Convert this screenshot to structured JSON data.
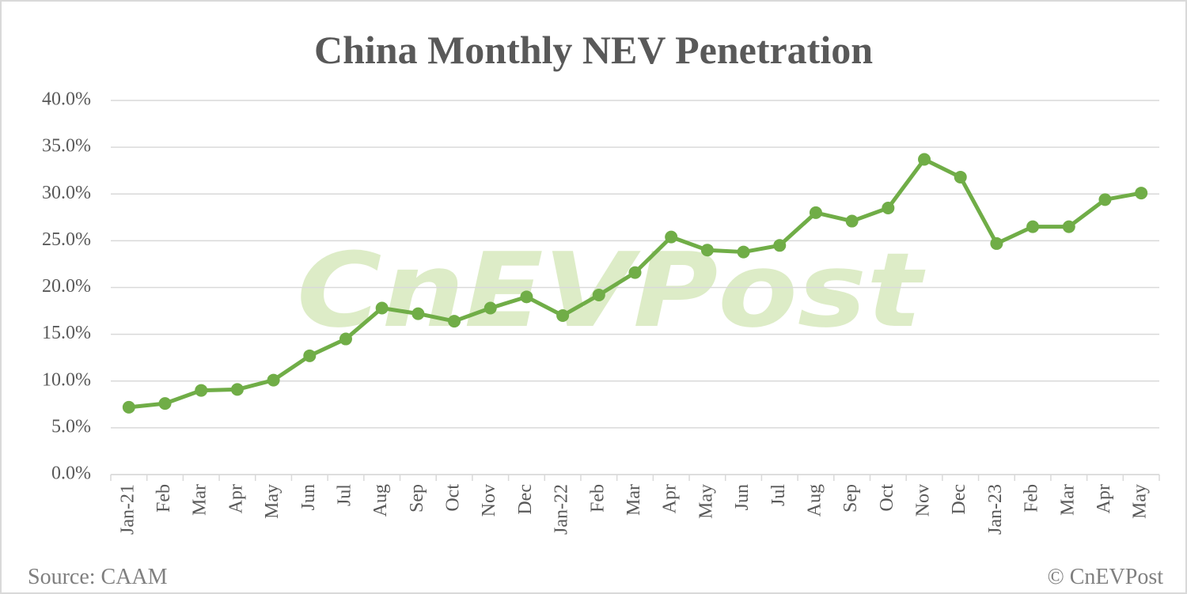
{
  "chart_data": {
    "type": "line",
    "title": "China Monthly NEV Penetration",
    "watermark": "CnEVPost",
    "source": "Source:  CAAM",
    "copyright": "© CnEVPost",
    "categories": [
      "Jan-21",
      "Feb",
      "Mar",
      "Apr",
      "May",
      "Jun",
      "Jul",
      "Aug",
      "Sep",
      "Oct",
      "Nov",
      "Dec",
      "Jan-22",
      "Feb",
      "Mar",
      "Apr",
      "May",
      "Jun",
      "Jul",
      "Aug",
      "Sep",
      "Oct",
      "Nov",
      "Dec",
      "Jan-23",
      "Feb",
      "Mar",
      "Apr",
      "May"
    ],
    "values": [
      7.2,
      7.6,
      9.0,
      9.1,
      10.1,
      12.7,
      14.5,
      17.8,
      17.2,
      16.4,
      17.8,
      19.0,
      17.0,
      19.2,
      21.6,
      25.4,
      24.0,
      23.8,
      24.5,
      28.0,
      27.1,
      28.5,
      33.7,
      31.8,
      24.7,
      26.5,
      26.5,
      29.4,
      30.1
    ],
    "color": "#70ad47",
    "ylim": [
      0,
      40
    ],
    "yticks": [
      {
        "value": 0,
        "label": "0.0%"
      },
      {
        "value": 5,
        "label": "5.0%"
      },
      {
        "value": 10,
        "label": "10.0%"
      },
      {
        "value": 15,
        "label": "15.0%"
      },
      {
        "value": 20,
        "label": "20.0%"
      },
      {
        "value": 25,
        "label": "25.0%"
      },
      {
        "value": 30,
        "label": "30.0%"
      },
      {
        "value": 35,
        "label": "35.0%"
      },
      {
        "value": 40,
        "label": "40.0%"
      }
    ],
    "grid": true
  }
}
